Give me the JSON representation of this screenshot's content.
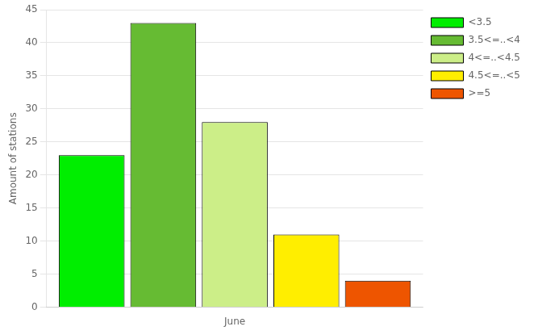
{
  "chart_data": {
    "type": "bar",
    "ylabel": "Amount of stations",
    "categories": [
      "June"
    ],
    "series": [
      {
        "name": "<3.5",
        "color": "#00ee00",
        "values": [
          23
        ]
      },
      {
        "name": "3.5<=..<4",
        "color": "#66bb33",
        "values": [
          43
        ]
      },
      {
        "name": "4<=..<4.5",
        "color": "#ccee88",
        "values": [
          28
        ]
      },
      {
        "name": "4.5<=..<5",
        "color": "#ffee00",
        "values": [
          11
        ]
      },
      {
        "name": ">=5",
        "color": "#ee5500",
        "values": [
          4
        ]
      }
    ],
    "ylim": [
      0,
      45
    ],
    "yticks": [
      0,
      5,
      10,
      15,
      20,
      25,
      30,
      35,
      40,
      45
    ],
    "grid": true,
    "legend": "upper right"
  }
}
